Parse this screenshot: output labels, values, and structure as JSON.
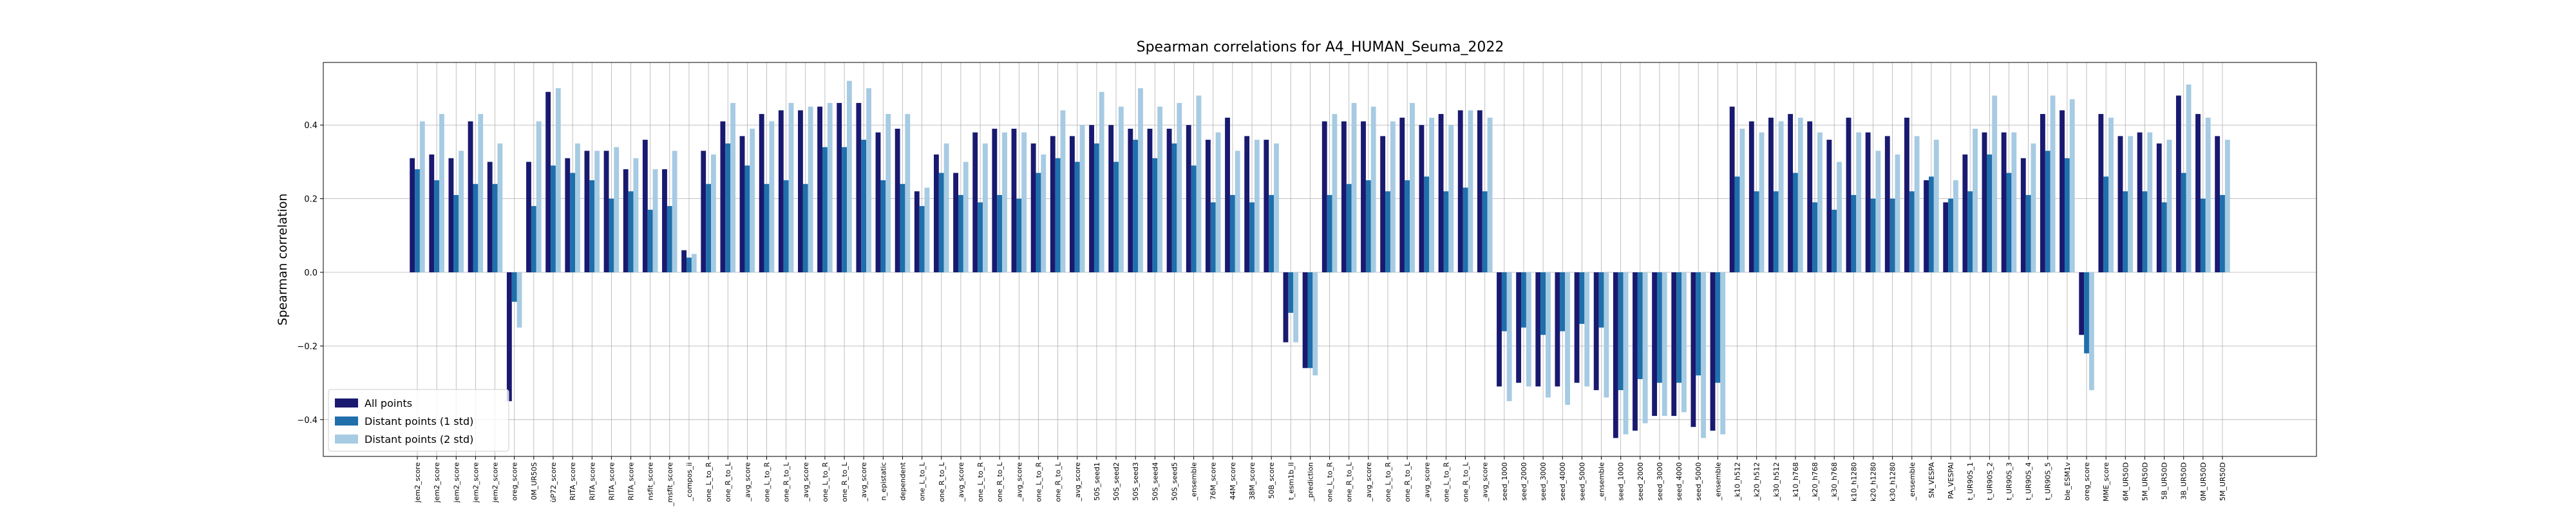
{
  "chart_data": {
    "type": "bar",
    "title": "Spearman correlations for A4_HUMAN_Seuma_2022",
    "y_label": "Spearman correlation",
    "categories": [
      "jem2_score",
      "jem2_score",
      "jem2_score",
      "jem2_score",
      "jem2_score",
      "oreg_score",
      "0M_UR50S",
      "ùP72_score",
      "RITA_score",
      "RITA_score",
      "RITA_score",
      "RITA_score",
      "nsfit_score",
      "_msfit_score",
      "_compos_ii",
      "one_L_to_R",
      "one_R_to_L",
      "_avg_score",
      "one_L_to_R",
      "one_R_to_L",
      "_avg_score",
      "one_L_to_R",
      "one_R_to_L",
      "_avg_score",
      "n_epistatic",
      "dependent",
      "one_L_to_L",
      "one_R_to_L",
      "_avg_score",
      "one_L_to_R",
      "one_R_to_L",
      "_avg_score",
      "one_L_to_R",
      "one_R_to_L",
      "_avg_score",
      "50S_seed1",
      "50S_seed2",
      "50S_seed3",
      "50S_seed4",
      "50S_seed5",
      "_ensemble",
      "76M_score",
      "44M_score",
      "38M_score",
      "50B_score",
      "t_esm1b_ll",
      "_prediction",
      "one_L_to_R",
      "one_R_to_L",
      "_avg_score",
      "one_L_to_R",
      "one_R_to_L",
      "_avg_score",
      "one_L_to_R",
      "one_R_to_L",
      "_avg_score",
      "seed_1000",
      "seed_2000",
      "seed_3000",
      "seed_4000",
      "seed_5000",
      "_ensemble",
      "seed_1000",
      "seed_2000",
      "seed_3000",
      "seed_4000",
      "seed_5000",
      "_ensemble",
      "_k10_h512",
      "_k20_h512",
      "_k30_h512",
      "_k10_h768",
      "_k20_h768",
      "_k30_h768",
      "k10_h1280",
      "k20_h1280",
      "k30_h1280",
      "_ensemble",
      "SN_VESPA",
      "PA_VESPAl",
      "t_UR90S_1",
      "t_UR90S_2",
      "t_UR90S_3",
      "t_UR90S_4",
      "t_UR90S_5",
      "ble_ESM1v",
      "oreg_score",
      "MME_score",
      "6M_UR50D",
      "5M_UR50D",
      "5B_UR50D",
      "3B_UR50D",
      "0M_UR50D",
      "5M_UR50D"
    ],
    "series": [
      {
        "name": "All points",
        "color": "#191970",
        "values": [
          0.31,
          0.32,
          0.31,
          0.41,
          0.3,
          -0.35,
          0.3,
          0.49,
          0.31,
          0.33,
          0.33,
          0.28,
          0.36,
          0.28,
          0.06,
          0.33,
          0.41,
          0.37,
          0.43,
          0.44,
          0.44,
          0.45,
          0.46,
          0.46,
          0.38,
          0.39,
          0.22,
          0.32,
          0.27,
          0.38,
          0.39,
          0.39,
          0.35,
          0.37,
          0.37,
          0.4,
          0.4,
          0.39,
          0.39,
          0.39,
          0.4,
          0.36,
          0.42,
          0.37,
          0.36,
          -0.19,
          -0.26,
          0.41,
          0.41,
          0.41,
          0.37,
          0.42,
          0.4,
          0.43,
          0.44,
          0.44,
          -0.31,
          -0.3,
          -0.31,
          -0.31,
          -0.3,
          -0.32,
          -0.45,
          -0.43,
          -0.39,
          -0.39,
          -0.42,
          -0.43,
          0.45,
          0.41,
          0.42,
          0.43,
          0.41,
          0.36,
          0.42,
          0.38,
          0.37,
          0.42,
          0.25,
          0.19,
          0.32,
          0.38,
          0.38,
          0.31,
          0.43,
          0.44,
          -0.17,
          0.43,
          0.37,
          0.38,
          0.35,
          0.48,
          0.43,
          0.37
        ]
      },
      {
        "name": "Distant points (1 std)",
        "color": "#1f6fab",
        "values": [
          0.28,
          0.25,
          0.21,
          0.24,
          0.24,
          -0.08,
          0.18,
          0.29,
          0.27,
          0.25,
          0.2,
          0.22,
          0.17,
          0.18,
          0.04,
          0.24,
          0.35,
          0.29,
          0.24,
          0.25,
          0.24,
          0.34,
          0.34,
          0.36,
          0.25,
          0.24,
          0.18,
          0.27,
          0.21,
          0.19,
          0.21,
          0.2,
          0.27,
          0.31,
          0.3,
          0.35,
          0.3,
          0.36,
          0.31,
          0.35,
          0.29,
          0.19,
          0.21,
          0.19,
          0.21,
          -0.11,
          -0.26,
          0.21,
          0.24,
          0.25,
          0.22,
          0.25,
          0.26,
          0.22,
          0.23,
          0.22,
          -0.16,
          -0.15,
          -0.17,
          -0.16,
          -0.14,
          -0.15,
          -0.32,
          -0.29,
          -0.3,
          -0.3,
          -0.28,
          -0.3,
          0.26,
          0.22,
          0.22,
          0.27,
          0.19,
          0.17,
          0.21,
          0.2,
          0.2,
          0.22,
          0.26,
          0.2,
          0.22,
          0.32,
          0.27,
          0.21,
          0.33,
          0.31,
          -0.22,
          0.26,
          0.22,
          0.22,
          0.19,
          0.27,
          0.2,
          0.21
        ]
      },
      {
        "name": "Distant points (2 std)",
        "color": "#a6cbe3",
        "values": [
          0.41,
          0.43,
          0.33,
          0.43,
          0.35,
          -0.15,
          0.41,
          0.5,
          0.35,
          0.33,
          0.34,
          0.31,
          0.28,
          0.33,
          0.05,
          0.32,
          0.46,
          0.39,
          0.41,
          0.46,
          0.45,
          0.46,
          0.52,
          0.5,
          0.43,
          0.43,
          0.23,
          0.35,
          0.3,
          0.35,
          0.38,
          0.38,
          0.32,
          0.44,
          0.4,
          0.49,
          0.45,
          0.5,
          0.45,
          0.46,
          0.48,
          0.38,
          0.33,
          0.36,
          0.35,
          -0.19,
          -0.28,
          0.43,
          0.46,
          0.45,
          0.41,
          0.46,
          0.42,
          0.4,
          0.44,
          0.42,
          -0.35,
          -0.31,
          -0.34,
          -0.36,
          -0.31,
          -0.34,
          -0.44,
          -0.41,
          -0.39,
          -0.38,
          -0.45,
          -0.44,
          0.39,
          0.38,
          0.41,
          0.42,
          0.38,
          0.3,
          0.38,
          0.33,
          0.32,
          0.37,
          0.36,
          0.25,
          0.39,
          0.48,
          0.38,
          0.35,
          0.48,
          0.47,
          -0.32,
          0.42,
          0.37,
          0.38,
          0.36,
          0.51,
          0.42,
          0.36
        ]
      }
    ],
    "ylim": [
      -0.5,
      0.57
    ],
    "yticks": [
      {
        "value": -0.4,
        "label": "−0.4"
      },
      {
        "value": -0.2,
        "label": "−0.2"
      },
      {
        "value": 0.0,
        "label": "0.0"
      },
      {
        "value": 0.2,
        "label": "0.2"
      },
      {
        "value": 0.4,
        "label": "0.4"
      }
    ],
    "grid": true,
    "legend": "lower left"
  }
}
